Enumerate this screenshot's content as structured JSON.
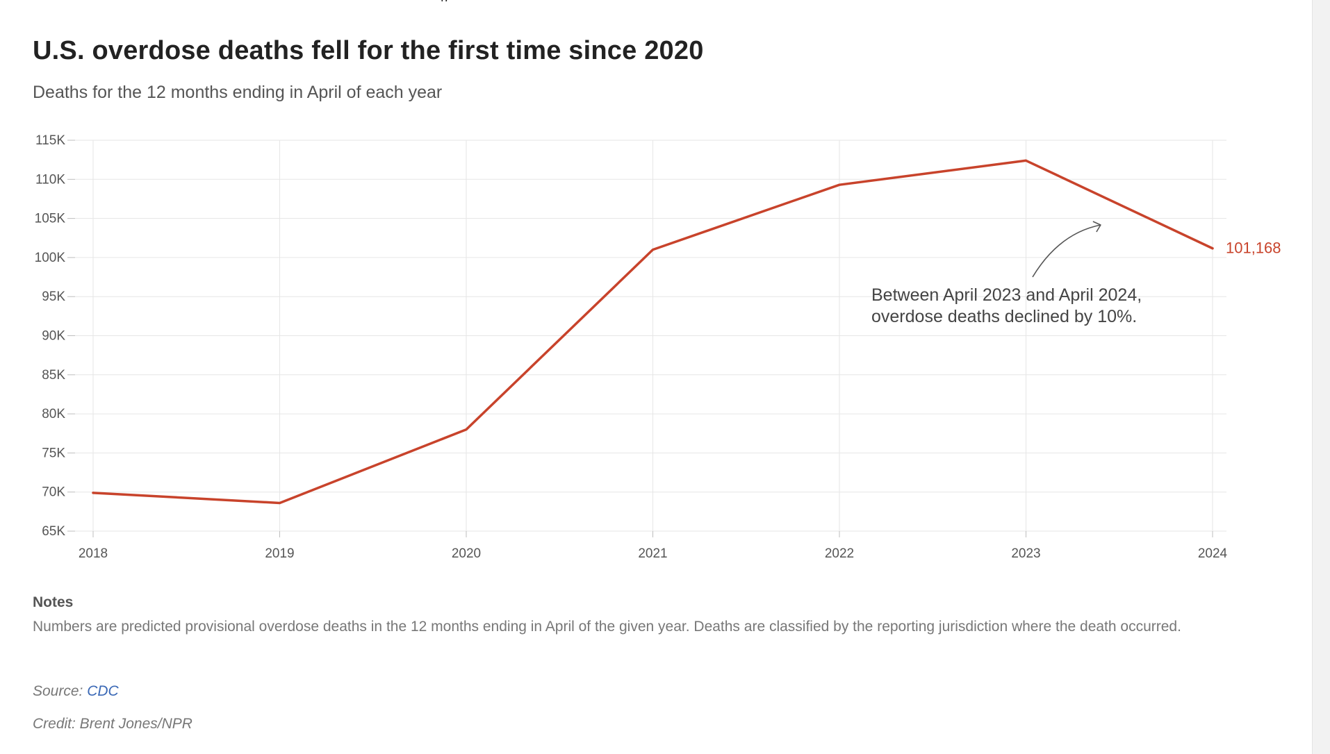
{
  "page": {
    "top_fragment": "p",
    "accent_color": "#c8432b"
  },
  "chart_data": {
    "type": "line",
    "title": "U.S. overdose deaths fell for the first time since 2020",
    "subtitle": "Deaths for the 12 months ending in April of each year",
    "xlabel": "",
    "ylabel": "",
    "x": [
      2018,
      2019,
      2020,
      2021,
      2022,
      2023,
      2024
    ],
    "x_tick_labels": [
      "2018",
      "2019",
      "2020",
      "2021",
      "2022",
      "2023",
      "2024"
    ],
    "ylim": [
      65000,
      115000
    ],
    "y_ticks": [
      65000,
      70000,
      75000,
      80000,
      85000,
      90000,
      95000,
      100000,
      105000,
      110000,
      115000
    ],
    "y_tick_labels": [
      "65K",
      "70K",
      "75K",
      "80K",
      "85K",
      "90K",
      "95K",
      "100K",
      "105K",
      "110K",
      "115K"
    ],
    "grid": true,
    "series": [
      {
        "values": [
          69900,
          68600,
          78000,
          101000,
          109300,
          112400,
          101168
        ],
        "color": "#c8432b",
        "end_label": "101,168"
      }
    ],
    "annotations": [
      {
        "lines": [
          "Between April 2023 and April 2024,",
          "overdose deaths declined by 10%."
        ],
        "arrow_to_year": 2023.4
      }
    ]
  },
  "notes": {
    "heading": "Notes",
    "text": "Numbers are predicted provisional overdose deaths in the 12 months ending in April of the given year. Deaths are classified by the reporting jurisdiction where the death occurred."
  },
  "source": {
    "prefix": "Source:",
    "link_text": "CDC"
  },
  "credit": {
    "text": "Credit: Brent Jones/NPR"
  }
}
